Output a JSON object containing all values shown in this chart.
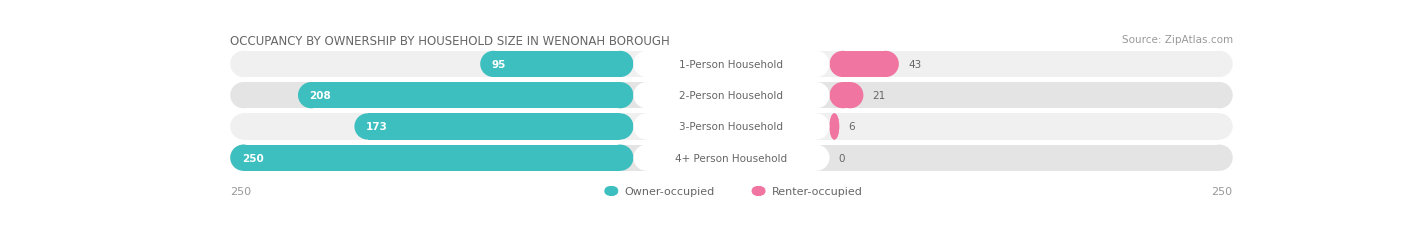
{
  "title": "OCCUPANCY BY OWNERSHIP BY HOUSEHOLD SIZE IN WENONAH BOROUGH",
  "source": "Source: ZipAtlas.com",
  "categories": [
    "1-Person Household",
    "2-Person Household",
    "3-Person Household",
    "4+ Person Household"
  ],
  "owner_values": [
    95,
    208,
    173,
    250
  ],
  "renter_values": [
    43,
    21,
    6,
    0
  ],
  "max_value": 250,
  "owner_color": "#3dbfbf",
  "renter_color": "#f075a0",
  "row_bg_color_odd": "#f0f0f0",
  "row_bg_color_even": "#e4e4e4",
  "label_bg_color": "#ffffff",
  "title_fontsize": 8.5,
  "source_fontsize": 7.5,
  "tick_fontsize": 8,
  "legend_fontsize": 8,
  "value_fontsize": 7.5,
  "category_fontsize": 7.5,
  "left_tick": "250",
  "right_tick": "250",
  "legend_items": [
    "Owner-occupied",
    "Renter-occupied"
  ]
}
